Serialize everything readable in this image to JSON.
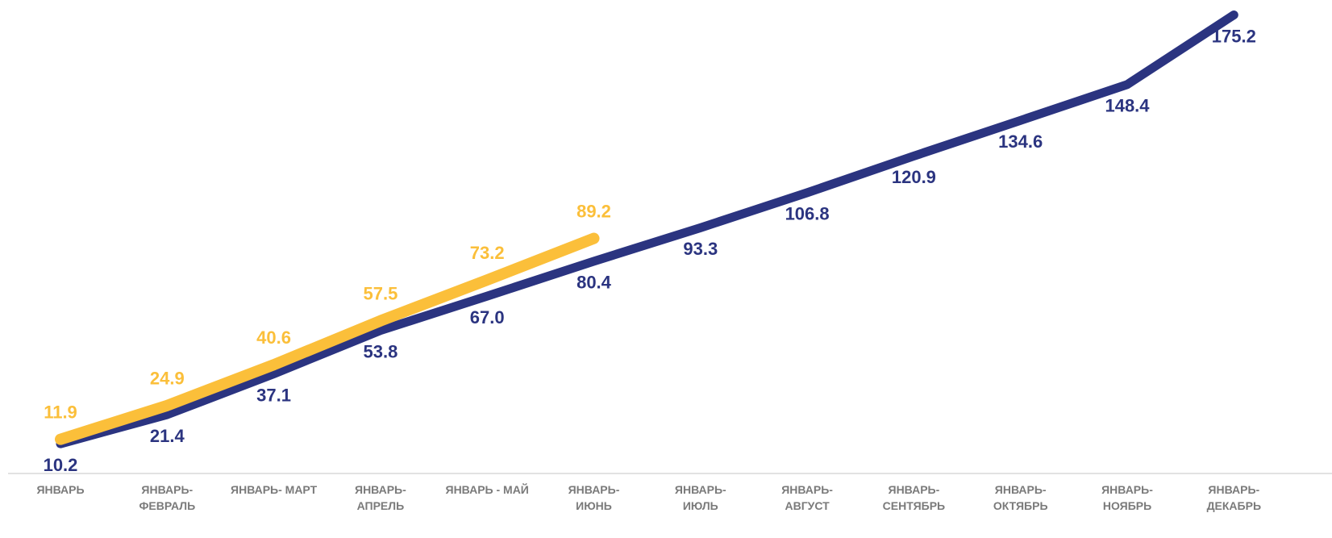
{
  "chart_data": {
    "type": "line",
    "categories": [
      "ЯНВАРЬ",
      "ЯНВАРЬ-\nФЕВРАЛЬ",
      "ЯНВАРЬ- МАРТ",
      "ЯНВАРЬ-\nАПРЕЛЬ",
      "ЯНВАРЬ - МАЙ",
      "ЯНВАРЬ-\nИЮНЬ",
      "ЯНВАРЬ-\nИЮЛЬ",
      "ЯНВАРЬ-\nАВГУСТ",
      "ЯНВАРЬ-\nСЕНТЯБРЬ",
      "ЯНВАРЬ-\nОКТЯБРЬ",
      "ЯНВАРЬ-\nНОЯБРЬ",
      "ЯНВАРЬ-\nДЕКАБРЬ"
    ],
    "series": [
      {
        "color": "#2b3480",
        "label_position": "below",
        "values": [
          10.2,
          21.4,
          37.1,
          53.8,
          67.0,
          80.4,
          93.3,
          106.8,
          120.9,
          134.6,
          148.4,
          175.2
        ],
        "value_labels": [
          "10.2",
          "21.4",
          "37.1",
          "53.8",
          "67.0",
          "80.4",
          "93.3",
          "106.8",
          "120.9",
          "134.6",
          "148.4",
          "175.2"
        ]
      },
      {
        "color": "#fbbf3a",
        "label_position": "above",
        "values": [
          11.9,
          24.9,
          40.6,
          57.5,
          73.2,
          89.2,
          null,
          null,
          null,
          null,
          null,
          null
        ],
        "value_labels": [
          "11.9",
          "24.9",
          "40.6",
          "57.5",
          "73.2",
          "89.2",
          null,
          null,
          null,
          null,
          null,
          null
        ]
      }
    ],
    "ylim": [
      0,
      180
    ]
  }
}
